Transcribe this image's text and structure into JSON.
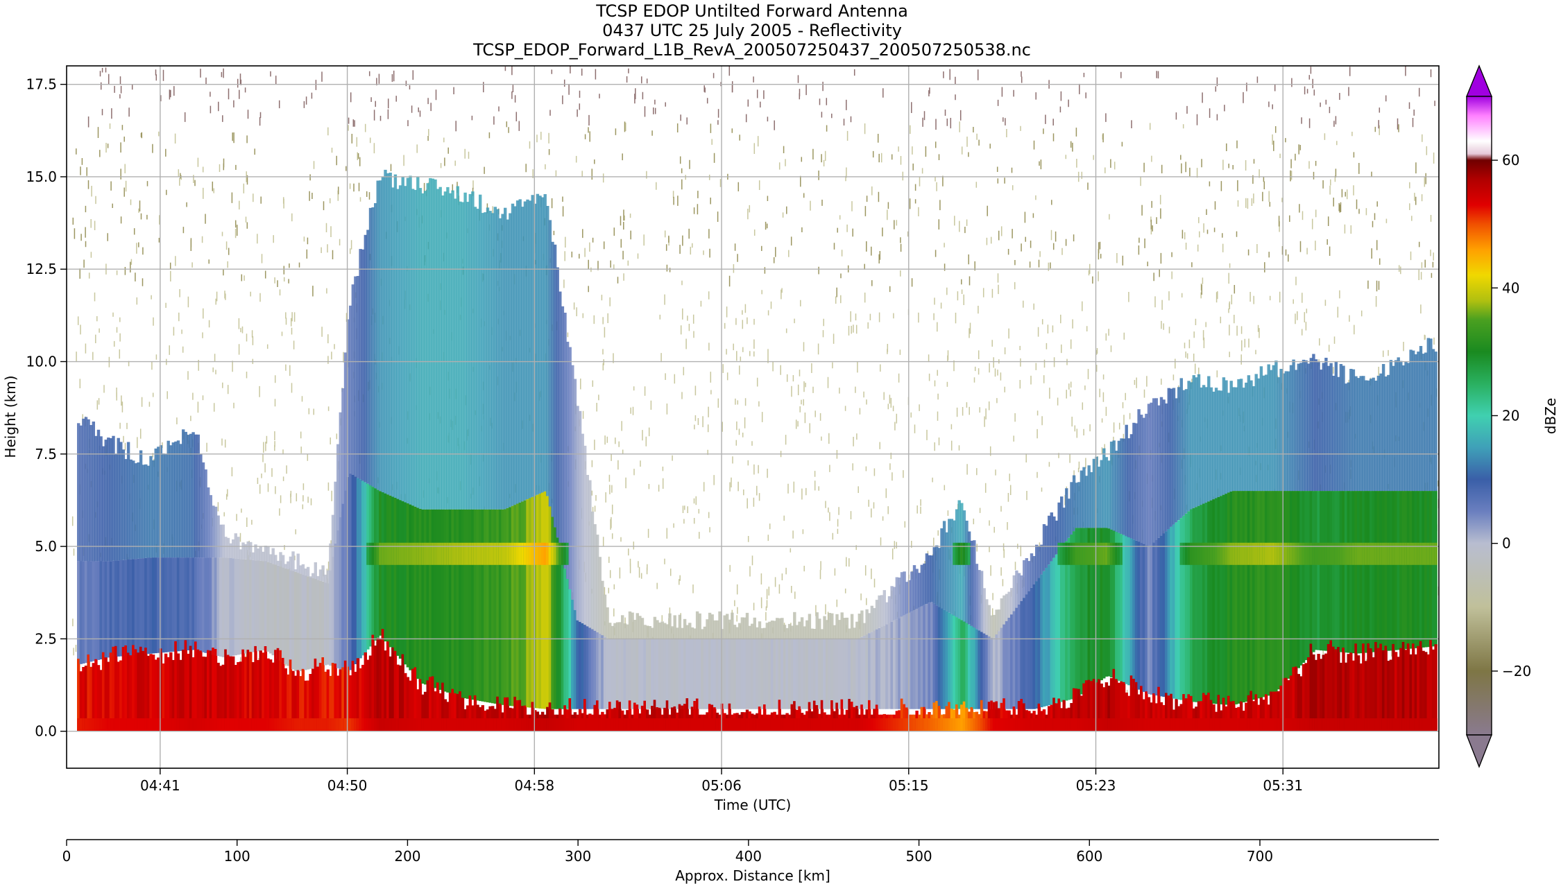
{
  "chart_data": {
    "type": "heatmap",
    "title_lines": [
      "TCSP EDOP Untilted Forward Antenna",
      "0437 UTC 25 July 2005 - Reflectivity",
      "TCSP_EDOP_Forward_L1B_RevA_200507250437_200507250538.nc"
    ],
    "xlabel": "Time (UTC)",
    "ylabel": "Height (km)",
    "x2label": "Approx. Distance [km]",
    "colorbar_label": "dBZe",
    "grid": true,
    "x_ticks": [
      {
        "value": 4.5,
        "label": "04:41"
      },
      {
        "value": 13.5,
        "label": "04:50"
      },
      {
        "value": 22.5,
        "label": "04:58"
      },
      {
        "value": 31.5,
        "label": "05:06"
      },
      {
        "value": 40.5,
        "label": "05:15"
      },
      {
        "value": 49.5,
        "label": "05:23"
      },
      {
        "value": 58.5,
        "label": "05:31"
      }
    ],
    "x_range_minutes": [
      0,
      66
    ],
    "y_ticks": [
      {
        "value": 0.0,
        "label": "0.0"
      },
      {
        "value": 2.5,
        "label": "2.5"
      },
      {
        "value": 5.0,
        "label": "5.0"
      },
      {
        "value": 7.5,
        "label": "7.5"
      },
      {
        "value": 10.0,
        "label": "10.0"
      },
      {
        "value": 12.5,
        "label": "12.5"
      },
      {
        "value": 15.0,
        "label": "15.0"
      },
      {
        "value": 17.5,
        "label": "17.5"
      }
    ],
    "y_range": [
      -1.0,
      18.0
    ],
    "distance_ticks": [
      {
        "value": 0,
        "label": "0"
      },
      {
        "value": 100,
        "label": "100"
      },
      {
        "value": 200,
        "label": "200"
      },
      {
        "value": 300,
        "label": "300"
      },
      {
        "value": 400,
        "label": "400"
      },
      {
        "value": 500,
        "label": "500"
      },
      {
        "value": 600,
        "label": "600"
      },
      {
        "value": 700,
        "label": "700"
      }
    ],
    "distance_range": [
      0,
      805
    ],
    "colorbar_ticks": [
      {
        "value": -20,
        "label": "−20"
      },
      {
        "value": 0,
        "label": "0"
      },
      {
        "value": 20,
        "label": "20"
      },
      {
        "value": 40,
        "label": "40"
      },
      {
        "value": 60,
        "label": "60"
      }
    ],
    "colorbar_range": [
      -30,
      70
    ],
    "colorbar_stops": [
      {
        "value": -30,
        "color": "#8a7a8f"
      },
      {
        "value": -20,
        "color": "#7e7645"
      },
      {
        "value": -10,
        "color": "#c0c09a"
      },
      {
        "value": 0,
        "color": "#b8bdd0"
      },
      {
        "value": 5,
        "color": "#6a7fbf"
      },
      {
        "value": 10,
        "color": "#3a5fa8"
      },
      {
        "value": 15,
        "color": "#3fa0b8"
      },
      {
        "value": 20,
        "color": "#40d0b0"
      },
      {
        "value": 25,
        "color": "#2ab060"
      },
      {
        "value": 30,
        "color": "#1a8a20"
      },
      {
        "value": 35,
        "color": "#4aa020"
      },
      {
        "value": 38,
        "color": "#b0c010"
      },
      {
        "value": 42,
        "color": "#f0d800"
      },
      {
        "value": 46,
        "color": "#ffa000"
      },
      {
        "value": 50,
        "color": "#f05000"
      },
      {
        "value": 53,
        "color": "#e00000"
      },
      {
        "value": 57,
        "color": "#b00000"
      },
      {
        "value": 60,
        "color": "#700000"
      },
      {
        "value": 61,
        "color": "#e6c8d8"
      },
      {
        "value": 63,
        "color": "#ffffff"
      },
      {
        "value": 67,
        "color": "#ff80ff"
      },
      {
        "value": 70,
        "color": "#a000e0"
      }
    ],
    "columns": [
      {
        "t": 0.5,
        "top": 8.5,
        "mid": 4.6,
        "mid_dbz": 14,
        "surf": 1.8,
        "surf_dbz": 53,
        "echo_dbz": 5
      },
      {
        "t": 2,
        "top": 7.8,
        "mid": 4.6,
        "mid_dbz": 16,
        "surf": 2.0,
        "surf_dbz": 54,
        "echo_dbz": 8
      },
      {
        "t": 4,
        "top": 7.3,
        "mid": 4.7,
        "mid_dbz": 18,
        "surf": 2.1,
        "surf_dbz": 54,
        "echo_dbz": 9
      },
      {
        "t": 6,
        "top": 8.3,
        "mid": 4.7,
        "mid_dbz": 17,
        "surf": 2.2,
        "surf_dbz": 55,
        "echo_dbz": 8
      },
      {
        "t": 7.5,
        "top": 5.3,
        "mid": 4.7,
        "mid_dbz": 6,
        "surf": 2.0,
        "surf_dbz": 54,
        "echo_dbz": 0
      },
      {
        "t": 9.5,
        "top": 4.8,
        "mid": 4.6,
        "mid_dbz": 5,
        "surf": 2.2,
        "surf_dbz": 54,
        "echo_dbz": -2
      },
      {
        "t": 11,
        "top": 4.6,
        "mid": 4.3,
        "mid_dbz": 6,
        "surf": 1.6,
        "surf_dbz": 53,
        "echo_dbz": -2
      },
      {
        "t": 12.5,
        "top": 4.2,
        "mid": 4.0,
        "mid_dbz": 5,
        "surf": 1.8,
        "surf_dbz": 53,
        "echo_dbz": -2
      },
      {
        "t": 13.5,
        "top": 11.5,
        "mid": 7.0,
        "mid_dbz": 12,
        "surf": 1.6,
        "surf_dbz": 52,
        "echo_dbz": 6
      },
      {
        "t": 15,
        "top": 15.0,
        "mid": 6.5,
        "mid_dbz": 20,
        "surf": 2.6,
        "surf_dbz": 56,
        "echo_dbz": 30
      },
      {
        "t": 17,
        "top": 14.8,
        "mid": 6.0,
        "mid_dbz": 22,
        "surf": 1.3,
        "surf_dbz": 55,
        "echo_dbz": 31
      },
      {
        "t": 19,
        "top": 14.5,
        "mid": 6.0,
        "mid_dbz": 22,
        "surf": 0.9,
        "surf_dbz": 55,
        "echo_dbz": 32
      },
      {
        "t": 21,
        "top": 14.0,
        "mid": 6.0,
        "mid_dbz": 20,
        "surf": 0.7,
        "surf_dbz": 55,
        "echo_dbz": 33
      },
      {
        "t": 23,
        "top": 14.5,
        "mid": 6.5,
        "mid_dbz": 20,
        "surf": 0.6,
        "surf_dbz": 56,
        "echo_dbz": 40
      },
      {
        "t": 24.5,
        "top": 9.0,
        "mid": 3.0,
        "mid_dbz": 8,
        "surf": 0.6,
        "surf_dbz": 55,
        "echo_dbz": 12
      },
      {
        "t": 26,
        "top": 3.0,
        "mid": 2.5,
        "mid_dbz": 0,
        "surf": 0.6,
        "surf_dbz": 55,
        "echo_dbz": -1
      },
      {
        "t": 30,
        "top": 3.0,
        "mid": 2.5,
        "mid_dbz": 0,
        "surf": 0.6,
        "surf_dbz": 55,
        "echo_dbz": -1
      },
      {
        "t": 34,
        "top": 3.0,
        "mid": 2.5,
        "mid_dbz": 0,
        "surf": 0.6,
        "surf_dbz": 55,
        "echo_dbz": -1
      },
      {
        "t": 38,
        "top": 3.0,
        "mid": 2.5,
        "mid_dbz": 0,
        "surf": 0.6,
        "surf_dbz": 55,
        "echo_dbz": -1
      },
      {
        "t": 41.5,
        "top": 4.8,
        "mid": 3.5,
        "mid_dbz": 16,
        "surf": 0.6,
        "surf_dbz": 50,
        "echo_dbz": 4
      },
      {
        "t": 43,
        "top": 6.3,
        "mid": 3.0,
        "mid_dbz": 22,
        "surf": 0.6,
        "surf_dbz": 47,
        "echo_dbz": 26
      },
      {
        "t": 44.5,
        "top": 3.0,
        "mid": 2.5,
        "mid_dbz": 0,
        "surf": 0.6,
        "surf_dbz": 54,
        "echo_dbz": 0
      },
      {
        "t": 46.5,
        "top": 5.0,
        "mid": 4.0,
        "mid_dbz": 14,
        "surf": 0.6,
        "surf_dbz": 55,
        "echo_dbz": 10
      },
      {
        "t": 48.5,
        "top": 6.8,
        "mid": 5.5,
        "mid_dbz": 18,
        "surf": 0.9,
        "surf_dbz": 55,
        "echo_dbz": 28
      },
      {
        "t": 50,
        "top": 7.5,
        "mid": 5.5,
        "mid_dbz": 20,
        "surf": 1.5,
        "surf_dbz": 56,
        "echo_dbz": 30
      },
      {
        "t": 52,
        "top": 8.8,
        "mid": 5.0,
        "mid_dbz": 12,
        "surf": 1.0,
        "surf_dbz": 55,
        "echo_dbz": 4
      },
      {
        "t": 54,
        "top": 9.5,
        "mid": 6.0,
        "mid_dbz": 20,
        "surf": 0.8,
        "surf_dbz": 55,
        "echo_dbz": 26
      },
      {
        "t": 56,
        "top": 9.3,
        "mid": 6.5,
        "mid_dbz": 20,
        "surf": 0.7,
        "surf_dbz": 55,
        "echo_dbz": 31
      },
      {
        "t": 58,
        "top": 9.8,
        "mid": 6.5,
        "mid_dbz": 20,
        "surf": 1.0,
        "surf_dbz": 55,
        "echo_dbz": 32
      },
      {
        "t": 60,
        "top": 10.0,
        "mid": 6.5,
        "mid_dbz": 16,
        "surf": 2.2,
        "surf_dbz": 56,
        "echo_dbz": 28
      },
      {
        "t": 62,
        "top": 9.5,
        "mid": 6.5,
        "mid_dbz": 18,
        "surf": 2.1,
        "surf_dbz": 56,
        "echo_dbz": 30
      },
      {
        "t": 64,
        "top": 10.0,
        "mid": 6.5,
        "mid_dbz": 18,
        "surf": 2.2,
        "surf_dbz": 56,
        "echo_dbz": 30
      },
      {
        "t": 65.8,
        "top": 10.5,
        "mid": 6.5,
        "mid_dbz": 18,
        "surf": 2.3,
        "surf_dbz": 56,
        "echo_dbz": 30
      }
    ]
  }
}
